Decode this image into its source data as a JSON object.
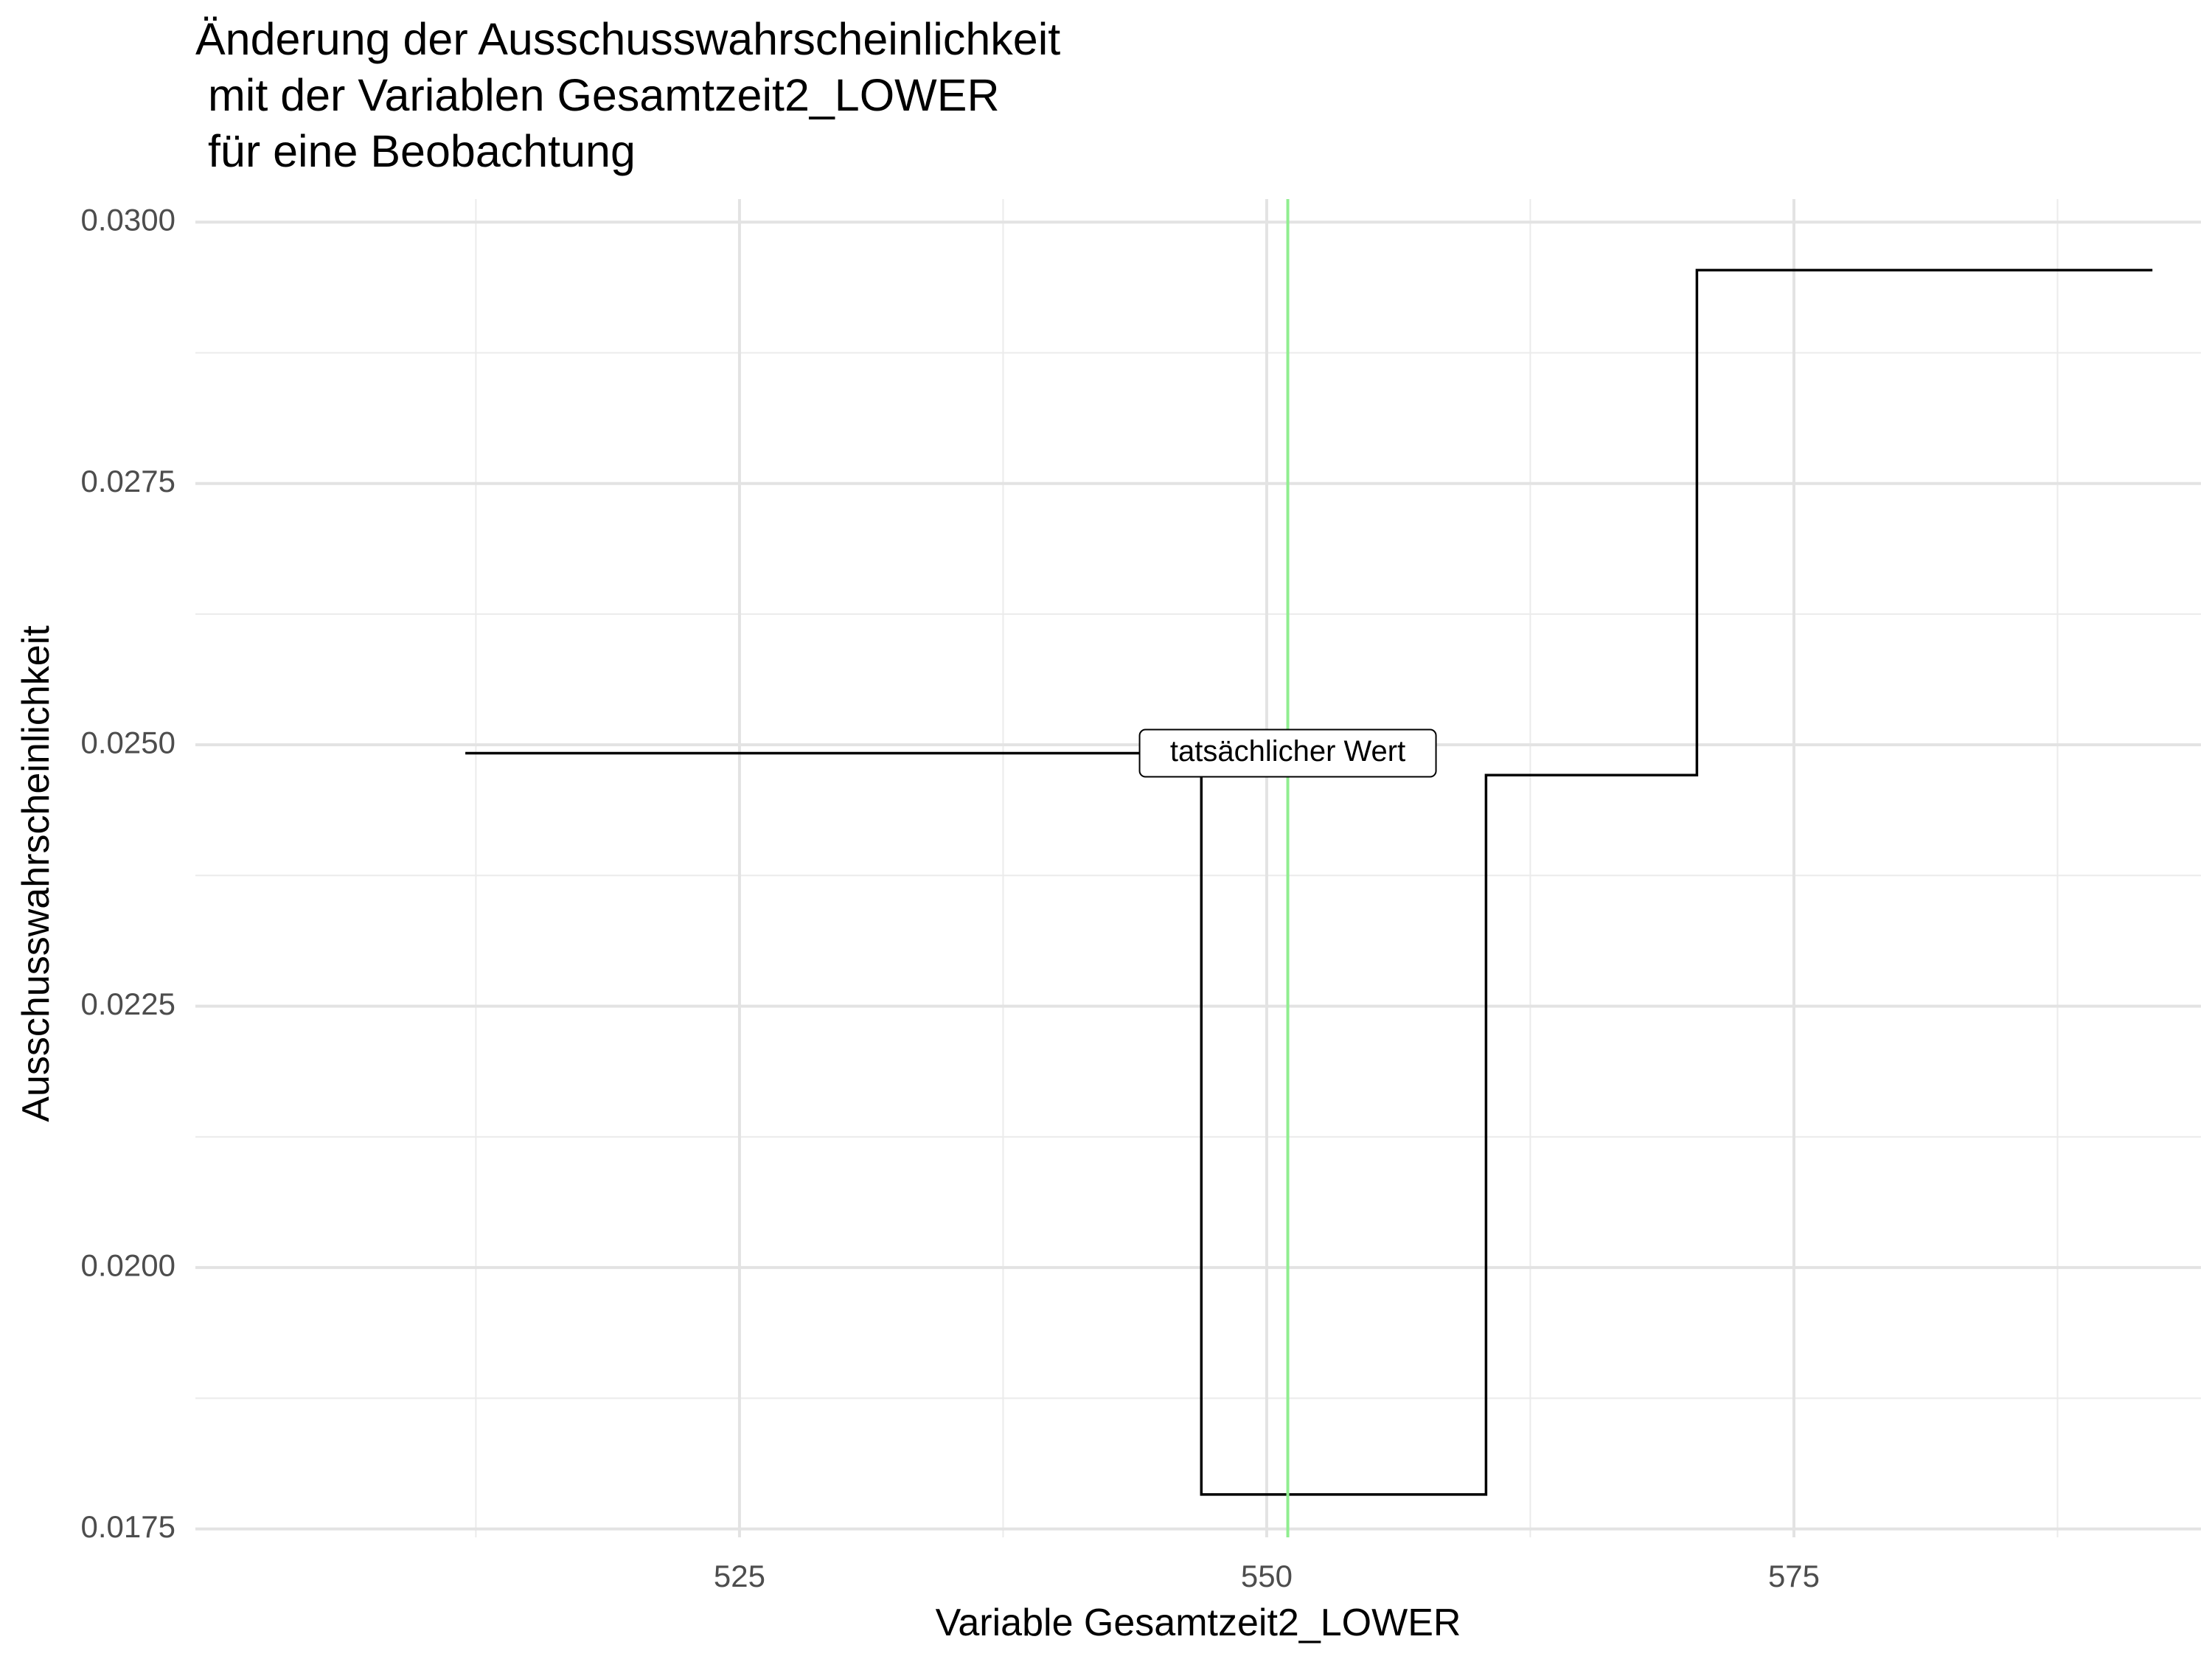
{
  "chart_data": {
    "type": "line",
    "step": true,
    "title_lines": [
      "Änderung der Ausschusswahrscheinlichkeit",
      " mit der Variablen Gesamtzeit2_LOWER",
      " für eine Beobachtung"
    ],
    "xlabel": "Variable Gesamtzeit2_LOWER",
    "ylabel": "Ausschusswahrscheinlichkeit",
    "xlim": [
      499.2,
      594.3
    ],
    "ylim": [
      0.01742,
      0.03022
    ],
    "x_ticks": [
      525,
      550,
      575
    ],
    "x_tick_labels": [
      "525",
      "550",
      "575"
    ],
    "x_minor_ticks": [
      512.5,
      537.5,
      562.5,
      587.5
    ],
    "y_ticks": [
      0.0175,
      0.02,
      0.0225,
      0.025,
      0.0275,
      0.03
    ],
    "y_tick_labels": [
      "0.0175",
      "0.0200",
      "0.0225",
      "0.0250",
      "0.0275",
      "0.0300"
    ],
    "y_minor_ticks": [
      0.01875,
      0.02125,
      0.02375,
      0.02625,
      0.02875
    ],
    "grid": true,
    "series": [
      {
        "color": "#000000",
        "points": [
          {
            "x": 512,
            "y": 0.02492
          },
          {
            "x": 546.9,
            "y": 0.02492
          },
          {
            "x": 546.9,
            "y": 0.01783
          },
          {
            "x": 560.4,
            "y": 0.01783
          },
          {
            "x": 560.4,
            "y": 0.02471
          },
          {
            "x": 570.4,
            "y": 0.02471
          },
          {
            "x": 570.4,
            "y": 0.02954
          },
          {
            "x": 592,
            "y": 0.02954
          }
        ]
      }
    ],
    "reference_line": {
      "x": 551,
      "color": "#90ee90"
    },
    "annotation": {
      "text": "tatsächlicher Wert",
      "x": 551,
      "y": 0.02492
    }
  }
}
